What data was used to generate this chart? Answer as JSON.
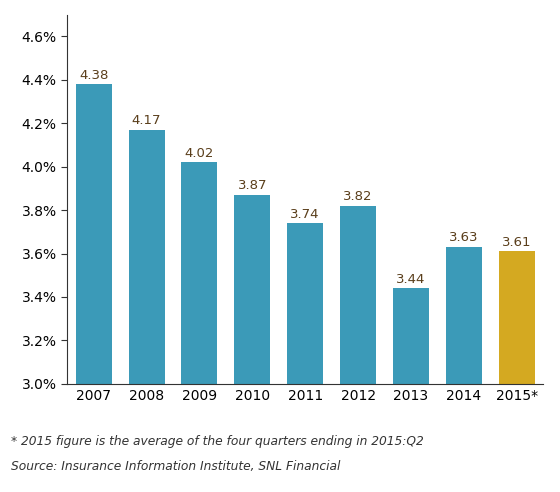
{
  "categories": [
    "2007",
    "2008",
    "2009",
    "2010",
    "2011",
    "2012",
    "2013",
    "2014",
    "2015*"
  ],
  "values": [
    4.38,
    4.17,
    4.02,
    3.87,
    3.74,
    3.82,
    3.44,
    3.63,
    3.61
  ],
  "bar_colors": [
    "#3b9ab8",
    "#3b9ab8",
    "#3b9ab8",
    "#3b9ab8",
    "#3b9ab8",
    "#3b9ab8",
    "#3b9ab8",
    "#3b9ab8",
    "#d4a921"
  ],
  "bar_bottom": 3.0,
  "ylim": [
    3.0,
    4.7
  ],
  "yticks": [
    3.0,
    3.2,
    3.4,
    3.6,
    3.8,
    4.0,
    4.2,
    4.4,
    4.6
  ],
  "footnote_line1": "* 2015 figure is the average of the four quarters ending in 2015:Q2",
  "footnote_line2": "Source: Insurance Information Institute, SNL Financial",
  "background_color": "#ffffff",
  "label_color": "#5a3e1b",
  "label_fontsize": 9.5,
  "tick_fontsize": 10,
  "footnote_fontsize": 8.8
}
